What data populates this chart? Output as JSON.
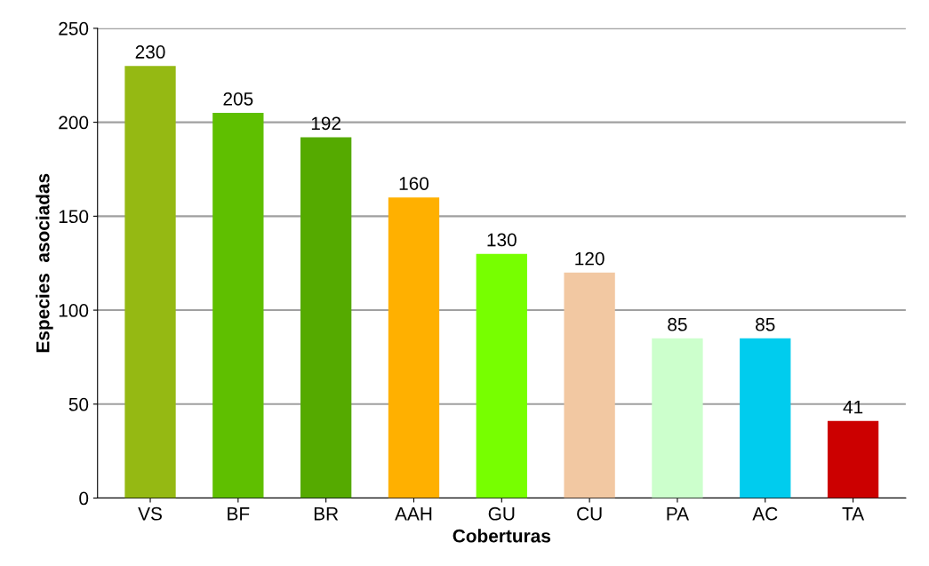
{
  "chart_data": {
    "type": "bar",
    "xlabel": "Coberturas",
    "ylabel": "Especies  asociadas",
    "categories": [
      "VS",
      "BF",
      "BR",
      "AAH",
      "GU",
      "CU",
      "PA",
      "AC",
      "TA"
    ],
    "values": [
      230,
      205,
      192,
      160,
      130,
      120,
      85,
      85,
      41
    ],
    "colors": [
      "#95b913",
      "#5fbf00",
      "#55aa00",
      "#ffb000",
      "#77ff00",
      "#f2c8a2",
      "#ccffcc",
      "#00ccee",
      "#cc0000"
    ],
    "ylim": [
      0,
      250
    ],
    "yticks": [
      0,
      50,
      100,
      150,
      200,
      250
    ],
    "grid": "y",
    "data_labels": true
  }
}
